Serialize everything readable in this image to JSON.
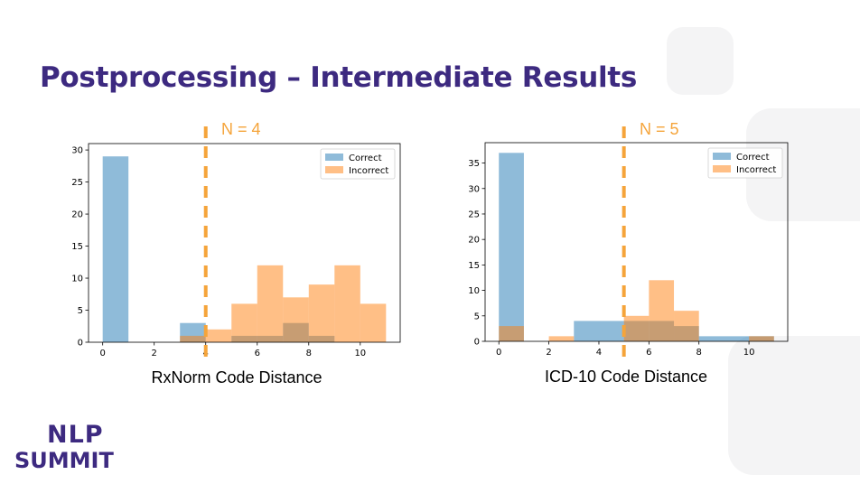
{
  "slide": {
    "title": "Postprocessing – Intermediate Results",
    "colors": {
      "title": "#3d2a80",
      "correct": "#1f77b4",
      "incorrect": "#ff7f0e",
      "threshold": "#f5a43a"
    }
  },
  "logo": {
    "line1": "NLP",
    "line2": "SUMMIT"
  },
  "chart_data": [
    {
      "type": "histogram",
      "xlabel": "RxNorm Code Distance",
      "ylabel": "",
      "xlim": [
        -0.55,
        11.55
      ],
      "ylim": [
        0,
        31
      ],
      "xticks": [
        0,
        2,
        4,
        6,
        8,
        10
      ],
      "yticks": [
        0,
        5,
        10,
        15,
        20,
        25,
        30
      ],
      "legend": "top-right",
      "legend_labels": [
        "Correct",
        "Incorrect"
      ],
      "threshold": {
        "x": 4,
        "label": "N = 4"
      },
      "series": [
        {
          "name": "Correct",
          "bins": [
            [
              0,
              1,
              29
            ],
            [
              3,
              4,
              3
            ],
            [
              5,
              6,
              1
            ],
            [
              6,
              7,
              1
            ],
            [
              7,
              8,
              3
            ],
            [
              8,
              9,
              1
            ]
          ]
        },
        {
          "name": "Incorrect",
          "bins": [
            [
              3,
              4,
              1
            ],
            [
              4,
              5,
              2
            ],
            [
              5,
              6,
              6
            ],
            [
              6,
              7,
              12
            ],
            [
              7,
              8,
              7
            ],
            [
              8,
              9,
              9
            ],
            [
              9,
              10,
              12
            ],
            [
              10,
              11,
              6
            ]
          ]
        }
      ]
    },
    {
      "type": "histogram",
      "xlabel": "ICD-10 Code Distance",
      "ylabel": "",
      "xlim": [
        -0.55,
        11.55
      ],
      "ylim": [
        0,
        39
      ],
      "xticks": [
        0,
        2,
        4,
        6,
        8,
        10
      ],
      "yticks": [
        0,
        5,
        10,
        15,
        20,
        25,
        30,
        35
      ],
      "legend": "top-right",
      "legend_labels": [
        "Correct",
        "Incorrect"
      ],
      "threshold": {
        "x": 5,
        "label": "N = 5"
      },
      "series": [
        {
          "name": "Correct",
          "bins": [
            [
              0,
              1,
              37
            ],
            [
              3,
              5,
              4
            ],
            [
              5,
              6,
              4
            ],
            [
              6,
              7,
              4
            ],
            [
              7,
              8,
              3
            ],
            [
              8,
              10,
              1
            ],
            [
              10,
              11,
              1
            ]
          ]
        },
        {
          "name": "Incorrect",
          "bins": [
            [
              0,
              1,
              3
            ],
            [
              2,
              3,
              1
            ],
            [
              5,
              6,
              5
            ],
            [
              6,
              7,
              12
            ],
            [
              7,
              8,
              6
            ],
            [
              10,
              11,
              1
            ]
          ]
        }
      ]
    }
  ]
}
